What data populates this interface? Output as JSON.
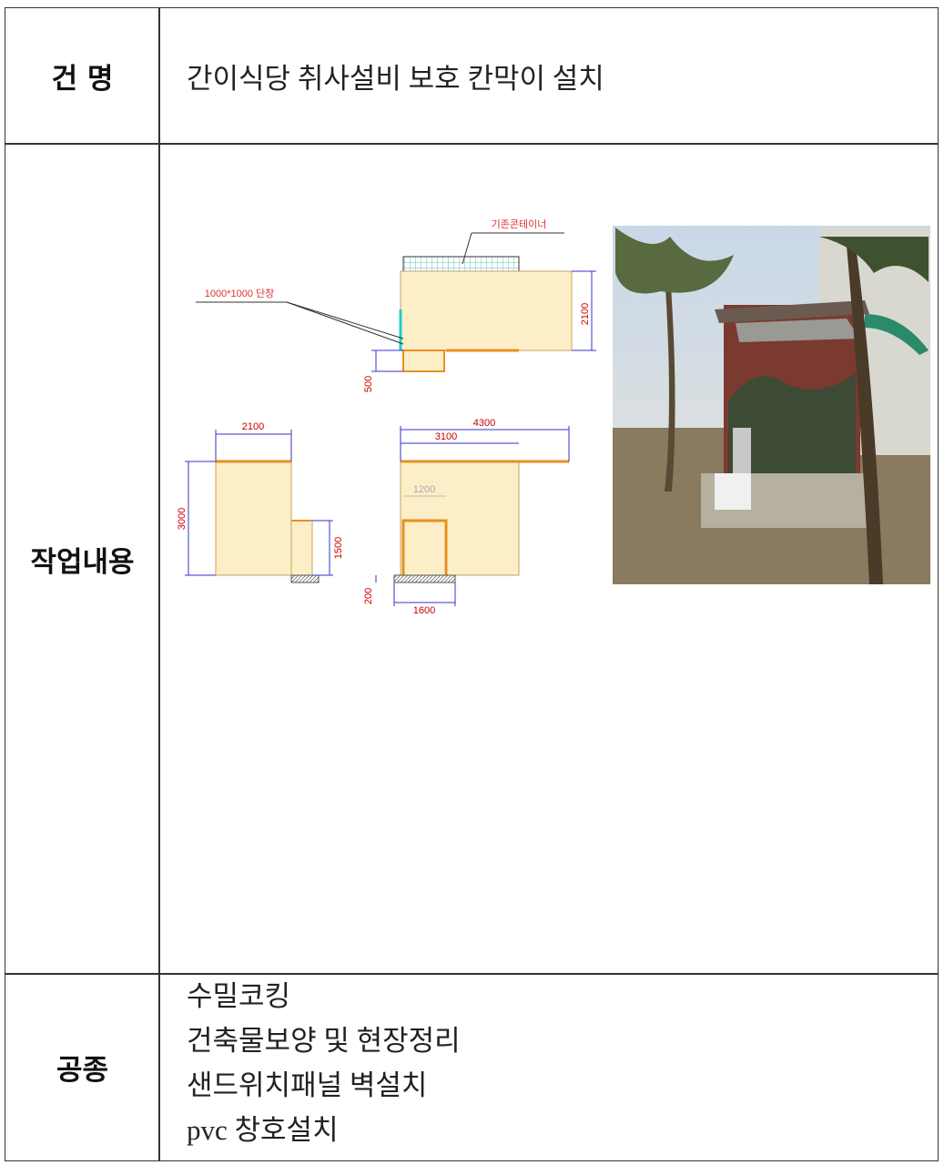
{
  "rows": [
    {
      "label": "건 명",
      "content": "간이식당 취사설비 보호 칸막이 설치"
    },
    {
      "label": "작업내용",
      "drawing": {
        "container": "기존콘테이너",
        "window": "1000*1000 단창",
        "plan_height": "2100",
        "plan_step": "500",
        "left_width": "2100",
        "left_height": "3000",
        "left_low": "1500",
        "right_total": "4300",
        "right_main": "3100",
        "door_height": "1200",
        "base": "200",
        "door_width": "1600"
      }
    },
    {
      "label": "공종",
      "items": [
        "수밀코킹",
        "건축물보양 및 현장정리",
        "샌드위치패널 벽설치",
        "pvc 창호설치"
      ]
    }
  ]
}
